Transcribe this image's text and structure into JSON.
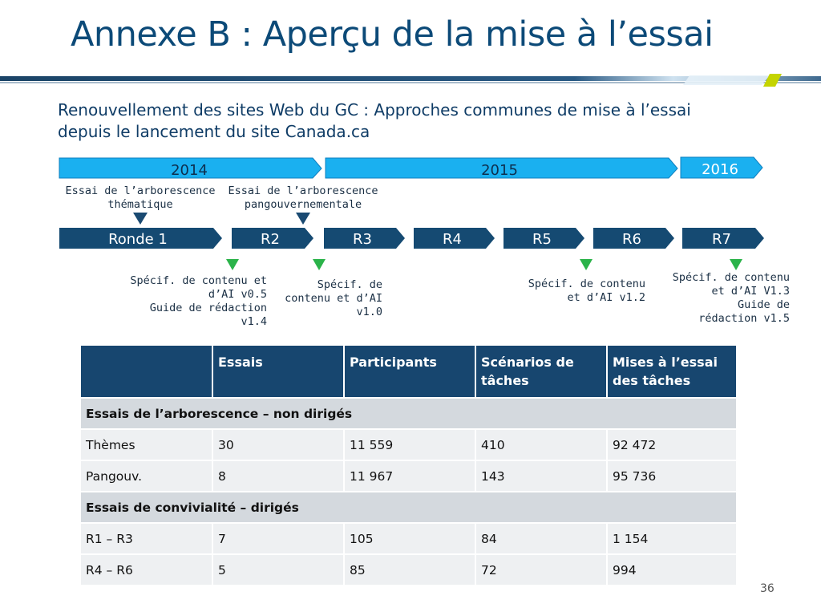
{
  "header": {
    "title": "Annexe B : Aperçu de la mise à l’essai",
    "subtitle": "Renouvellement des sites Web du GC : Approches communes de mise à l’essai depuis le lancement du site Canada.ca"
  },
  "timeline": {
    "years": [
      "2014",
      "2015",
      "2016"
    ],
    "rounds": [
      "Ronde 1",
      "R2",
      "R3",
      "R4",
      "R5",
      "R6",
      "R7"
    ],
    "tree_tests": [
      {
        "line1": "Essai de l’arborescence",
        "line2": "thématique"
      },
      {
        "line1": "Essai de l’arborescence",
        "line2": "pangouvernementale"
      }
    ],
    "specs": [
      {
        "lines": [
          "Spécif. de contenu et",
          "d’AI v0.5",
          "Guide de rédaction",
          "v1.4"
        ]
      },
      {
        "lines": [
          "Spécif. de",
          "contenu et d’AI",
          "v1.0"
        ]
      },
      {
        "lines": [
          "Spécif. de contenu",
          "et d’AI v1.2"
        ]
      },
      {
        "lines": [
          "Spécif. de contenu",
          "et d’AI V1.3",
          "Guide de",
          "rédaction v1.5"
        ]
      }
    ]
  },
  "table": {
    "headers": [
      "",
      "Essais",
      "Participants",
      "Scénarios de tâches",
      "Mises à l’essai des tâches"
    ],
    "sections": [
      {
        "title": "Essais de l’arborescence – non dirigés",
        "rows": [
          [
            "Thèmes",
            "30",
            "11 559",
            "410",
            "92 472"
          ],
          [
            "Pangouv.",
            "8",
            "11 967",
            "143",
            "95 736"
          ]
        ]
      },
      {
        "title": "Essais de convivialité – dirigés",
        "rows": [
          [
            "R1 – R3",
            "7",
            "105",
            "84",
            "1 154"
          ],
          [
            "R4 – R6",
            "5",
            "85",
            "72",
            "994"
          ]
        ]
      }
    ]
  },
  "page_number": "36",
  "colors": {
    "year_bar": "#1ab0f0",
    "round_bar": "#154a72",
    "marker_dark": "#1a4a72",
    "marker_green": "#2bb34a",
    "header_fill": "#17466f"
  }
}
